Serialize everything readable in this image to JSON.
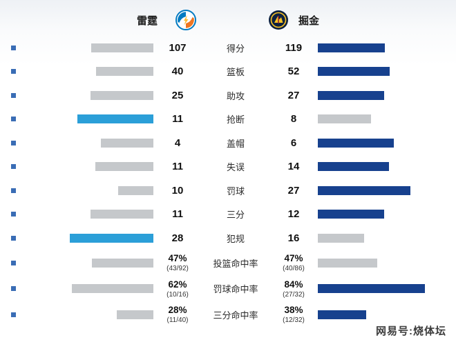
{
  "header": {
    "left_team": "雷霆",
    "right_team": "掘金"
  },
  "watermark": {
    "text": "网易号:烧体坛"
  },
  "colors": {
    "thunder_blue": "#2b9fd8",
    "nuggets_navy": "#17418e",
    "bar_gray": "#c5c8cb",
    "marker_blue": "#3a6db5",
    "nuggets_gold": "#fec524",
    "nuggets_dark": "#0e2240",
    "thunder_ring": "#007ac1",
    "thunder_orange": "#ef7622"
  },
  "chart_data": {
    "type": "bar",
    "teams": [
      "雷霆",
      "掘金"
    ],
    "rows": [
      {
        "label": "得分",
        "left_text": "107",
        "right_text": "119",
        "left_value": 107,
        "right_value": 119,
        "winner": "right"
      },
      {
        "label": "篮板",
        "left_text": "40",
        "right_text": "52",
        "left_value": 40,
        "right_value": 52,
        "winner": "right"
      },
      {
        "label": "助攻",
        "left_text": "25",
        "right_text": "27",
        "left_value": 25,
        "right_value": 27,
        "winner": "right"
      },
      {
        "label": "抢断",
        "left_text": "11",
        "right_text": "8",
        "left_value": 11,
        "right_value": 8,
        "winner": "left"
      },
      {
        "label": "盖帽",
        "left_text": "4",
        "right_text": "6",
        "left_value": 4,
        "right_value": 6,
        "winner": "right"
      },
      {
        "label": "失误",
        "left_text": "11",
        "right_text": "14",
        "left_value": 11,
        "right_value": 14,
        "winner": "right"
      },
      {
        "label": "罚球",
        "left_text": "10",
        "right_text": "27",
        "left_value": 10,
        "right_value": 27,
        "winner": "right"
      },
      {
        "label": "三分",
        "left_text": "11",
        "right_text": "12",
        "left_value": 11,
        "right_value": 12,
        "winner": "right"
      },
      {
        "label": "犯规",
        "left_text": "28",
        "right_text": "16",
        "left_value": 28,
        "right_value": 16,
        "winner": "left"
      },
      {
        "label": "投篮命中率",
        "left_text": "47%",
        "left_sub": "(43/92)",
        "right_text": "47%",
        "right_sub": "(40/86)",
        "left_value": 47,
        "right_value": 47,
        "winner": "tie",
        "is_pct": true
      },
      {
        "label": "罚球命中率",
        "left_text": "62%",
        "left_sub": "(10/16)",
        "right_text": "84%",
        "right_sub": "(27/32)",
        "left_value": 62,
        "right_value": 84,
        "winner": "right",
        "is_pct": true
      },
      {
        "label": "三分命中率",
        "left_text": "28%",
        "left_sub": "(11/40)",
        "right_text": "38%",
        "right_sub": "(12/32)",
        "left_value": 28,
        "right_value": 38,
        "winner": "right",
        "is_pct": true
      }
    ]
  }
}
